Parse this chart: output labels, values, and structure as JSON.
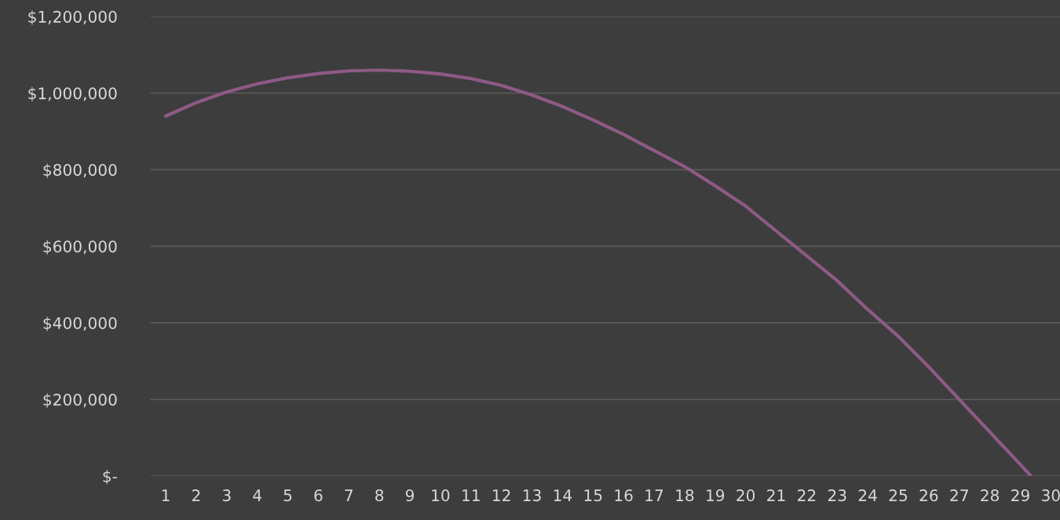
{
  "chart_data": {
    "type": "line",
    "x": [
      1,
      2,
      3,
      4,
      5,
      6,
      7,
      8,
      9,
      10,
      11,
      12,
      13,
      14,
      15,
      16,
      17,
      18,
      19,
      20,
      21,
      22,
      23,
      24,
      25,
      26,
      27,
      28,
      29,
      29.35
    ],
    "series": [
      {
        "color": "#8e5a85",
        "values": [
          940000,
          975000,
          1003000,
          1024000,
          1040000,
          1051000,
          1058000,
          1060000,
          1057000,
          1050000,
          1038000,
          1020000,
          995000,
          965000,
          930000,
          892000,
          850000,
          808000,
          758000,
          705000,
          640000,
          575000,
          510000,
          435000,
          365000,
          285000,
          200000,
          115000,
          30000,
          0
        ]
      }
    ],
    "xlim": [
      0.5,
      30.3
    ],
    "xticks": [
      1,
      2,
      3,
      4,
      5,
      6,
      7,
      8,
      9,
      10,
      11,
      12,
      13,
      14,
      15,
      16,
      17,
      18,
      19,
      20,
      21,
      22,
      23,
      24,
      25,
      26,
      27,
      28,
      29,
      30
    ],
    "ylim": [
      0,
      1200000
    ],
    "yticks": [
      {
        "value": 0,
        "label": "$-"
      },
      {
        "value": 200000,
        "label": "$200,000"
      },
      {
        "value": 400000,
        "label": "$400,000"
      },
      {
        "value": 600000,
        "label": "$600,000"
      },
      {
        "value": 800000,
        "label": "$800,000"
      },
      {
        "value": 1000000,
        "label": "$1,000,000"
      },
      {
        "value": 1200000,
        "label": "$1,200,000"
      }
    ],
    "grid": "y",
    "marker": "none",
    "line_style": "solid"
  }
}
